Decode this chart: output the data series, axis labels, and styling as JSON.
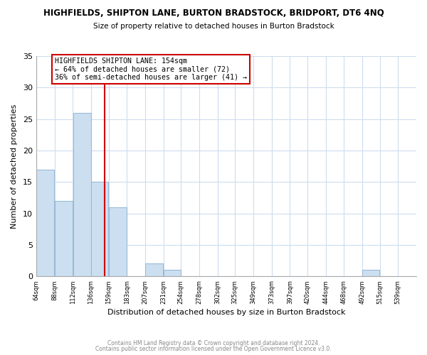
{
  "title": "HIGHFIELDS, SHIPTON LANE, BURTON BRADSTOCK, BRIDPORT, DT6 4NQ",
  "subtitle": "Size of property relative to detached houses in Burton Bradstock",
  "xlabel": "Distribution of detached houses by size in Burton Bradstock",
  "ylabel": "Number of detached properties",
  "footer1": "Contains HM Land Registry data © Crown copyright and database right 2024.",
  "footer2": "Contains public sector information licensed under the Open Government Licence v3.0.",
  "bar_left_edges": [
    64,
    88,
    112,
    136,
    159,
    183,
    207,
    231,
    254,
    278,
    302,
    325,
    349,
    373,
    397,
    420,
    444,
    468,
    492,
    515
  ],
  "bar_heights": [
    17,
    12,
    26,
    15,
    11,
    0,
    2,
    1,
    0,
    0,
    0,
    0,
    0,
    0,
    0,
    0,
    0,
    0,
    1,
    0
  ],
  "bar_widths": [
    24,
    24,
    24,
    23,
    24,
    24,
    24,
    23,
    24,
    24,
    23,
    24,
    24,
    24,
    23,
    24,
    24,
    24,
    23,
    24
  ],
  "bar_color": "#ccdff0",
  "bar_edgecolor": "#99bbd8",
  "vline_x": 154,
  "vline_color": "#cc0000",
  "annotation_text": "HIGHFIELDS SHIPTON LANE: 154sqm\n← 64% of detached houses are smaller (72)\n36% of semi-detached houses are larger (41) →",
  "annotation_box_edgecolor": "#cc0000",
  "annotation_box_facecolor": "#ffffff",
  "xlim": [
    64,
    563
  ],
  "ylim": [
    0,
    35
  ],
  "yticks": [
    0,
    5,
    10,
    15,
    20,
    25,
    30,
    35
  ],
  "xtick_labels": [
    "64sqm",
    "88sqm",
    "112sqm",
    "136sqm",
    "159sqm",
    "183sqm",
    "207sqm",
    "231sqm",
    "254sqm",
    "278sqm",
    "302sqm",
    "325sqm",
    "349sqm",
    "373sqm",
    "397sqm",
    "420sqm",
    "444sqm",
    "468sqm",
    "492sqm",
    "515sqm",
    "539sqm"
  ],
  "xtick_positions": [
    64,
    88,
    112,
    136,
    159,
    183,
    207,
    231,
    254,
    278,
    302,
    325,
    349,
    373,
    397,
    420,
    444,
    468,
    492,
    515,
    539
  ],
  "grid_color": "#ccddee",
  "background_color": "#ffffff",
  "spine_color": "#aaaaaa"
}
